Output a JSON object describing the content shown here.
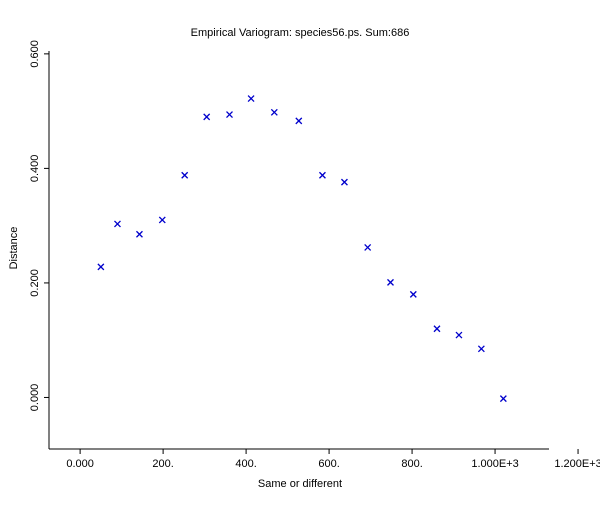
{
  "chart_data": {
    "type": "scatter",
    "title": "Empirical Variogram: species56.ps. Sum:686",
    "xlabel": "Same or different",
    "ylabel": "Distance",
    "xlim": [
      -75,
      1130
    ],
    "ylim": [
      -0.09,
      0.605
    ],
    "x_ticks": [
      {
        "value": 0,
        "label": "0.000"
      },
      {
        "value": 200,
        "label": "200."
      },
      {
        "value": 400,
        "label": "400."
      },
      {
        "value": 600,
        "label": "600."
      },
      {
        "value": 800,
        "label": "800."
      },
      {
        "value": 1000,
        "label": "1.000E+3"
      },
      {
        "value": 1200,
        "label": "1.200E+3"
      }
    ],
    "y_ticks": [
      {
        "value": 0.0,
        "label": "0.000"
      },
      {
        "value": 0.2,
        "label": "0.200"
      },
      {
        "value": 0.4,
        "label": "0.400"
      },
      {
        "value": 0.6,
        "label": "0.600"
      }
    ],
    "marker": "x",
    "marker_color": "#0000cc",
    "grid": false,
    "points": [
      {
        "x": 50,
        "y": 0.228
      },
      {
        "x": 90,
        "y": 0.303
      },
      {
        "x": 143,
        "y": 0.285
      },
      {
        "x": 198,
        "y": 0.31
      },
      {
        "x": 252,
        "y": 0.388
      },
      {
        "x": 305,
        "y": 0.49
      },
      {
        "x": 360,
        "y": 0.494
      },
      {
        "x": 412,
        "y": 0.522
      },
      {
        "x": 468,
        "y": 0.498
      },
      {
        "x": 527,
        "y": 0.483
      },
      {
        "x": 584,
        "y": 0.388
      },
      {
        "x": 637,
        "y": 0.376
      },
      {
        "x": 693,
        "y": 0.262
      },
      {
        "x": 748,
        "y": 0.201
      },
      {
        "x": 803,
        "y": 0.18
      },
      {
        "x": 860,
        "y": 0.12
      },
      {
        "x": 913,
        "y": 0.109
      },
      {
        "x": 967,
        "y": 0.085
      },
      {
        "x": 1020,
        "y": -0.002
      }
    ]
  }
}
